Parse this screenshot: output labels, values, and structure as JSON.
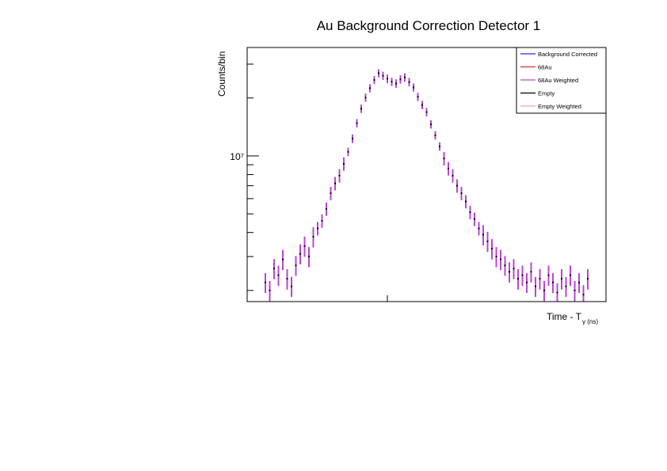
{
  "chart_data": {
    "type": "errorbar",
    "title": "Au Background Correction Detector 1",
    "xlabel": "Time - T",
    "xlabel_sub": "γ (ns)",
    "ylabel": "Counts/bin",
    "yscale": "log",
    "ylim": [
      1750000,
      36600000
    ],
    "yticks": [
      {
        "value": 10000000,
        "label": "10⁷"
      }
    ],
    "y_minor_ticks": [
      2000000,
      3000000,
      4000000,
      5000000,
      6000000,
      7000000,
      8000000,
      9000000,
      20000000,
      30000000
    ],
    "legend": "upper right",
    "series": [
      {
        "name": "Background Corrected",
        "color": "#2030c8"
      },
      {
        "name": "68Au",
        "color": "#e03030"
      },
      {
        "name": "68Au Weighted",
        "color": "#b848d0",
        "marker_color": "#000000",
        "values": [
          2200000.0,
          2000000.0,
          2600000.0,
          2400000.0,
          2900000.0,
          2300000.0,
          2100000.0,
          2700000.0,
          3100000.0,
          3400000.0,
          3000000.0,
          3800000.0,
          4200000.0,
          4600000.0,
          5300000.0,
          6400000.0,
          7200000.0,
          7900000.0,
          9100000.0,
          10500000.0,
          12300000.0,
          14800000.0,
          17600000.0,
          20100000.0,
          22500000.0,
          24800000.0,
          26900000.0,
          26100000.0,
          25200000.0,
          24300000.0,
          23800000.0,
          25000000.0,
          25600000.0,
          24200000.0,
          22700000.0,
          20300000.0,
          18400000.0,
          16900000.0,
          14600000.0,
          12800000.0,
          11200000.0,
          9700000.0,
          8600000.0,
          7900000.0,
          7000000.0,
          6400000.0,
          5800000.0,
          5100000.0,
          4700000.0,
          4200000.0,
          3900000.0,
          3600000.0,
          3300000.0,
          3000000.0,
          2900000.0,
          2700000.0,
          2500000.0,
          2600000.0,
          2300000.0,
          2400000.0,
          2200000.0,
          2500000.0,
          2100000.0,
          2300000.0,
          2000000.0,
          2400000.0,
          2200000.0,
          1950000.0,
          2300000.0,
          2100000.0,
          2400000.0,
          2000000.0,
          2200000.0,
          1900000.0,
          2300000.0
        ],
        "errors": [
          260000.0,
          240000.0,
          310000.0,
          290000.0,
          350000.0,
          280000.0,
          250000.0,
          320000.0,
          370000.0,
          410000.0,
          360000.0,
          460000.0,
          340000.0,
          370000.0,
          420000.0,
          510000.0,
          580000.0,
          630000.0,
          730000.0,
          530000.0,
          620000.0,
          740000.0,
          880000.0,
          1000000.0,
          1100000.0,
          1200000.0,
          1300000.0,
          1300000.0,
          1300000.0,
          1200000.0,
          1200000.0,
          1250000.0,
          1300000.0,
          1200000.0,
          1100000.0,
          1000000.0,
          920000.0,
          850000.0,
          730000.0,
          640000.0,
          560000.0,
          780000.0,
          690000.0,
          630000.0,
          560000.0,
          510000.0,
          460000.0,
          410000.0,
          380000.0,
          340000.0,
          470000.0,
          430000.0,
          400000.0,
          360000.0,
          350000.0,
          320000.0,
          300000.0,
          310000.0,
          280000.0,
          290000.0,
          260000.0,
          300000.0,
          250000.0,
          280000.0,
          240000.0,
          290000.0,
          260000.0,
          230000.0,
          280000.0,
          250000.0,
          290000.0,
          240000.0,
          260000.0,
          230000.0,
          280000.0
        ]
      },
      {
        "name": "Empty",
        "color": "#000000"
      },
      {
        "name": "Empty Weighted",
        "color": "#f0a0c8"
      }
    ]
  }
}
